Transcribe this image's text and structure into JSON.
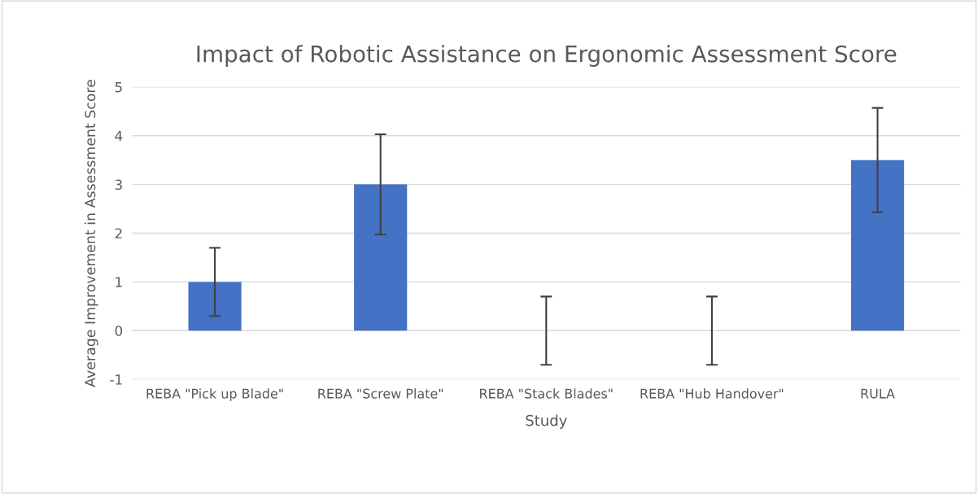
{
  "chart_data": {
    "type": "bar",
    "title": "Impact of Robotic Assistance on Ergonomic Assessment Score",
    "xlabel": "Study",
    "ylabel": "Average Improvement in Assessment Score",
    "categories": [
      "REBA \"Pick up Blade\"",
      "REBA \"Screw Plate\"",
      "REBA \"Stack Blades\"",
      "REBA \"Hub Handover\"",
      "RULA"
    ],
    "values": [
      1,
      3,
      0,
      0,
      3.5
    ],
    "errors": [
      0.7,
      1.03,
      0.7,
      0.7,
      1.07
    ],
    "color": "#4472c4",
    "ylim": [
      -1,
      5
    ],
    "yticks": [
      -1,
      0,
      1,
      2,
      3,
      4,
      5
    ],
    "grid": "y"
  }
}
